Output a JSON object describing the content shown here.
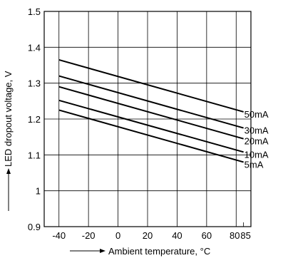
{
  "chart_data": {
    "type": "line",
    "title": "",
    "xlabel": "Ambient temperature, °C",
    "ylabel": "LED dropout voltage, V",
    "xlim": [
      -50,
      90
    ],
    "ylim": [
      0.9,
      1.5
    ],
    "grid": true,
    "x_ticks": [
      -40,
      -20,
      0,
      20,
      40,
      60,
      80,
      85
    ],
    "x_tick_labels": [
      "-40",
      "-20",
      "0",
      "20",
      "40",
      "60",
      "80",
      "85"
    ],
    "y_ticks": [
      0.9,
      1.0,
      1.1,
      1.2,
      1.3,
      1.4,
      1.5
    ],
    "y_tick_labels": [
      "0.9",
      "1",
      "1.1",
      "1.2",
      "1.3",
      "1.4",
      "1.5"
    ],
    "x": [
      -40,
      85
    ],
    "series": [
      {
        "name": "50mA",
        "values": [
          1.365,
          1.22
        ]
      },
      {
        "name": "30mA",
        "values": [
          1.32,
          1.175
        ]
      },
      {
        "name": "20mA",
        "values": [
          1.29,
          1.145
        ]
      },
      {
        "name": "10mA",
        "values": [
          1.252,
          1.108
        ]
      },
      {
        "name": "5mA",
        "values": [
          1.225,
          1.08
        ]
      }
    ]
  }
}
